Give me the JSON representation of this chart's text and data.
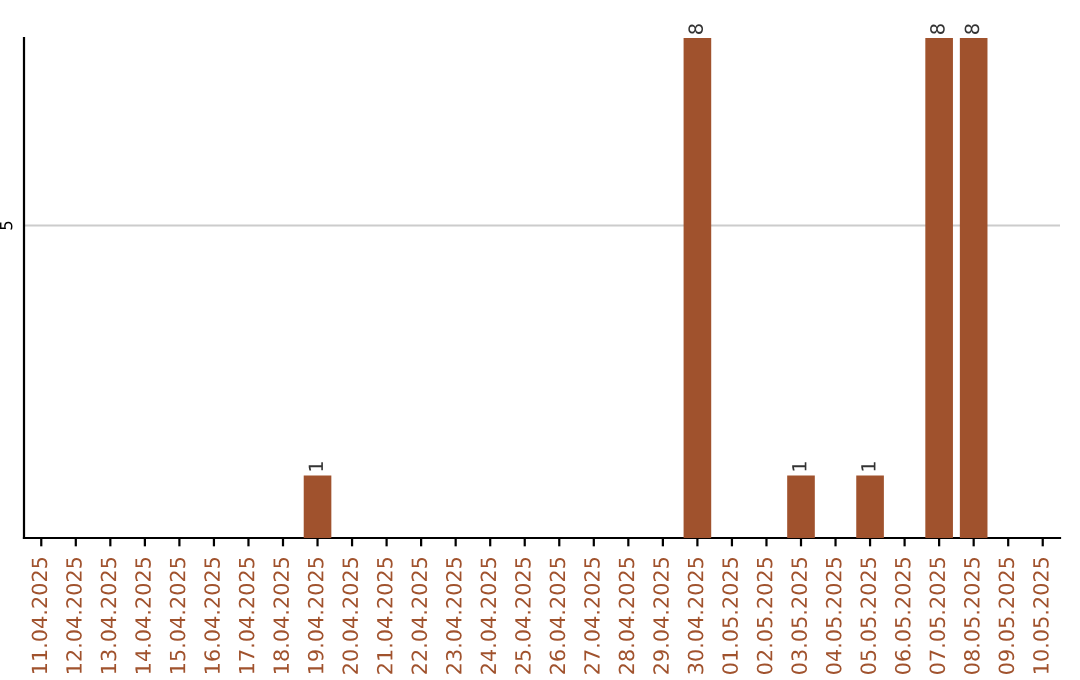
{
  "chart_data": {
    "type": "bar",
    "categories": [
      "11.04.2025",
      "12.04.2025",
      "13.04.2025",
      "14.04.2025",
      "15.04.2025",
      "16.04.2025",
      "17.04.2025",
      "18.04.2025",
      "19.04.2025",
      "20.04.2025",
      "21.04.2025",
      "22.04.2025",
      "23.04.2025",
      "24.04.2025",
      "25.04.2025",
      "26.04.2025",
      "27.04.2025",
      "28.04.2025",
      "29.04.2025",
      "30.04.2025",
      "01.05.2025",
      "02.05.2025",
      "03.05.2025",
      "04.05.2025",
      "05.05.2025",
      "06.05.2025",
      "07.05.2025",
      "08.05.2025",
      "09.05.2025",
      "10.05.2025"
    ],
    "values": [
      0,
      0,
      0,
      0,
      0,
      0,
      0,
      0,
      1,
      0,
      0,
      0,
      0,
      0,
      0,
      0,
      0,
      0,
      0,
      8,
      0,
      0,
      1,
      0,
      1,
      0,
      8,
      8,
      0,
      0
    ],
    "value_labels": [
      null,
      null,
      null,
      null,
      null,
      null,
      null,
      null,
      "1",
      null,
      null,
      null,
      null,
      null,
      null,
      null,
      null,
      null,
      null,
      "8",
      null,
      null,
      "1",
      null,
      "1",
      null,
      "8",
      "8",
      null,
      null
    ],
    "color": "#a0522d",
    "ylim": [
      0,
      8
    ],
    "yticks": [
      5
    ],
    "grid": "y"
  }
}
